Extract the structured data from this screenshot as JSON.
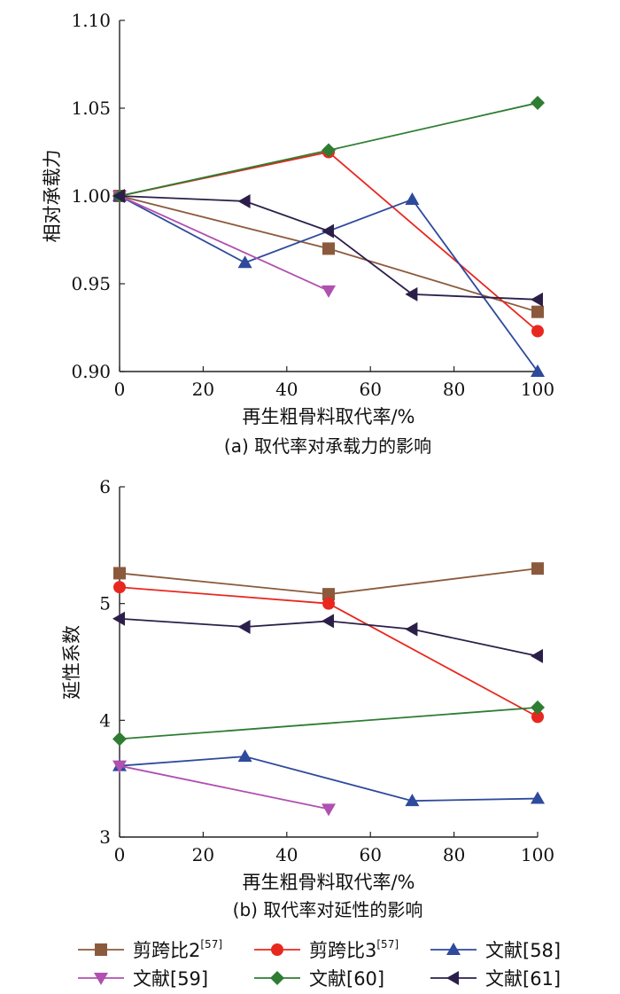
{
  "chart_data": [
    {
      "type": "line",
      "caption": "(a) 取代率对承载力的影响",
      "xlabel": "再生粗骨料取代率/%",
      "ylabel": "相对承载力",
      "xlim": [
        0,
        100
      ],
      "ylim": [
        0.9,
        1.1
      ],
      "xticks": [
        "0",
        "20",
        "40",
        "60",
        "80",
        "100"
      ],
      "yticks": [
        "0.90",
        "0.95",
        "1.00",
        "1.05",
        "1.10"
      ],
      "series": [
        {
          "name": "剪跨比2",
          "x": [
            0,
            50,
            100
          ],
          "y": [
            1.0,
            0.97,
            0.934
          ]
        },
        {
          "name": "剪跨比3",
          "x": [
            0,
            50,
            100
          ],
          "y": [
            1.0,
            1.025,
            0.923
          ]
        },
        {
          "name": "文献[58]",
          "x": [
            0,
            30,
            70,
            100
          ],
          "y": [
            1.0,
            0.962,
            0.998,
            0.9
          ]
        },
        {
          "name": "文献[59]",
          "x": [
            0,
            50
          ],
          "y": [
            1.0,
            0.946
          ]
        },
        {
          "name": "文献[60]",
          "x": [
            0,
            50,
            100
          ],
          "y": [
            1.0,
            1.026,
            1.053
          ]
        },
        {
          "name": "文献[61]",
          "x": [
            0,
            30,
            50,
            70,
            100
          ],
          "y": [
            1.0,
            0.997,
            0.98,
            0.944,
            0.941
          ]
        }
      ]
    },
    {
      "type": "line",
      "caption": "(b) 取代率对延性的影响",
      "xlabel": "再生粗骨料取代率/%",
      "ylabel": "延性系数",
      "xlim": [
        0,
        100
      ],
      "ylim": [
        3,
        6
      ],
      "xticks": [
        "0",
        "20",
        "40",
        "60",
        "80",
        "100"
      ],
      "yticks": [
        "3",
        "4",
        "5",
        "6"
      ],
      "series": [
        {
          "name": "剪跨比2",
          "x": [
            0,
            50,
            100
          ],
          "y": [
            5.26,
            5.08,
            5.3
          ]
        },
        {
          "name": "剪跨比3",
          "x": [
            0,
            50,
            100
          ],
          "y": [
            5.14,
            5.0,
            4.03
          ]
        },
        {
          "name": "文献[58]",
          "x": [
            0,
            30,
            70,
            100
          ],
          "y": [
            3.61,
            3.69,
            3.31,
            3.33
          ]
        },
        {
          "name": "文献[59]",
          "x": [
            0,
            50
          ],
          "y": [
            3.61,
            3.24
          ]
        },
        {
          "name": "文献[60]",
          "x": [
            0,
            100
          ],
          "y": [
            3.84,
            4.11
          ]
        },
        {
          "name": "文献[61]",
          "x": [
            0,
            30,
            50,
            70,
            100
          ],
          "y": [
            4.87,
            4.8,
            4.85,
            4.78,
            4.55
          ]
        }
      ]
    }
  ],
  "legend": [
    {
      "name": "剪跨比2",
      "ref": "[57]",
      "color": "#8B5A3C",
      "marker": "square"
    },
    {
      "name": "剪跨比3",
      "ref": "[57]",
      "color": "#E8281E",
      "marker": "circle"
    },
    {
      "name": "文献[58]",
      "ref": "",
      "color": "#2E4A9C",
      "marker": "triangle-up"
    },
    {
      "name": "文献[59]",
      "ref": "",
      "color": "#B050B0",
      "marker": "triangle-down"
    },
    {
      "name": "文献[60]",
      "ref": "",
      "color": "#2E7D32",
      "marker": "diamond"
    },
    {
      "name": "文献[61]",
      "ref": "",
      "color": "#2B1F4A",
      "marker": "triangle-left"
    }
  ]
}
